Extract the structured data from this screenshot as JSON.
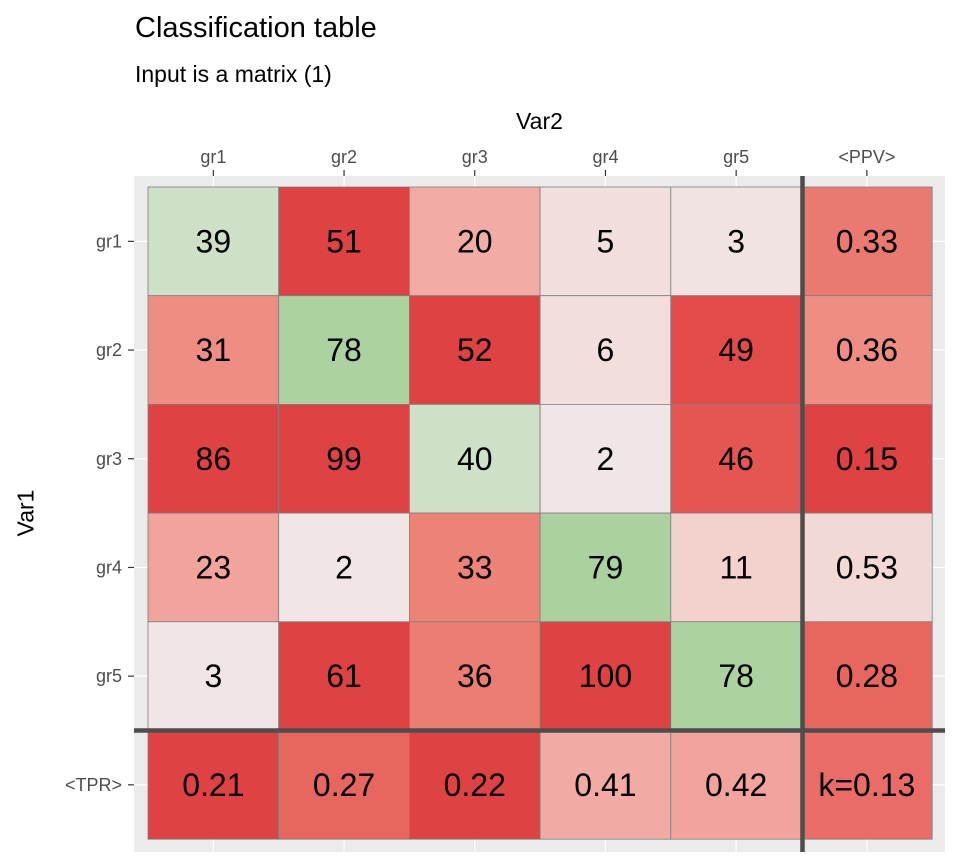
{
  "chart_data": {
    "type": "heatmap",
    "title": "Classification table",
    "subtitle": "Input is a matrix (1)",
    "xlabel": "Var2",
    "ylabel": "Var1",
    "columns": [
      "gr1",
      "gr2",
      "gr3",
      "gr4",
      "gr5",
      "<PPV>"
    ],
    "rows": [
      "gr1",
      "gr2",
      "gr3",
      "gr4",
      "gr5",
      "<TPR>"
    ],
    "cells": [
      [
        "39",
        "51",
        "20",
        "5",
        "3",
        "0.33"
      ],
      [
        "31",
        "78",
        "52",
        "6",
        "49",
        "0.36"
      ],
      [
        "86",
        "99",
        "40",
        "2",
        "46",
        "0.15"
      ],
      [
        "23",
        "2",
        "33",
        "79",
        "11",
        "0.53"
      ],
      [
        "3",
        "61",
        "36",
        "100",
        "78",
        "0.28"
      ],
      [
        "0.21",
        "0.27",
        "0.22",
        "0.41",
        "0.42",
        "k=0.13"
      ]
    ],
    "fill_colors": [
      [
        "#cfe0c8",
        "#de4242",
        "#f3aca5",
        "#f1dedd",
        "#f0e3e2",
        "#ea7a70"
      ],
      [
        "#ee8d82",
        "#acd2a0",
        "#de4242",
        "#f1dedd",
        "#e14b49",
        "#ee8d82"
      ],
      [
        "#de4242",
        "#de4242",
        "#cfe0c8",
        "#f0e6e5",
        "#e35652",
        "#de4242"
      ],
      [
        "#f2a39c",
        "#f0e6e5",
        "#ed8277",
        "#aad19e",
        "#f3d1cd",
        "#f2d9d6"
      ],
      [
        "#f0e6e5",
        "#de4242",
        "#ec7d72",
        "#de4242",
        "#acd2a0",
        "#e7675f"
      ],
      [
        "#de4242",
        "#e7675f",
        "#de4242",
        "#f2aba4",
        "#f2a39c",
        "#e96d66"
      ]
    ],
    "legend": "none",
    "grid": true
  }
}
